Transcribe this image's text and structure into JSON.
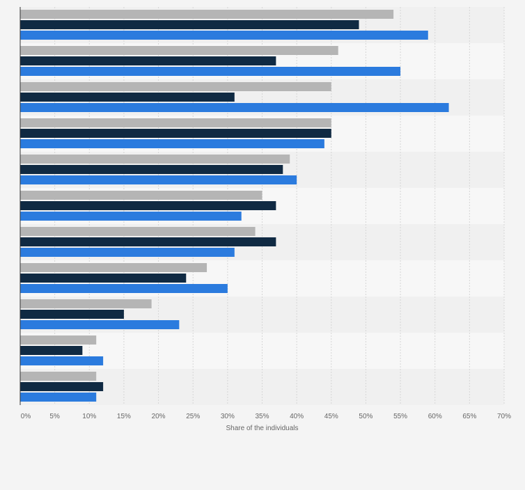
{
  "chart_data": {
    "type": "bar",
    "orientation": "horizontal",
    "xlabel": "Share of the individuals",
    "xlim": [
      0,
      70
    ],
    "x_ticks": [
      "0%",
      "5%",
      "10%",
      "15%",
      "20%",
      "25%",
      "30%",
      "35%",
      "40%",
      "45%",
      "50%",
      "55%",
      "60%",
      "65%",
      "70%"
    ],
    "category_count": 11,
    "grid": true,
    "legend": "none",
    "series": [
      {
        "color": "#b5b5b5",
        "values": [
          54,
          46,
          45,
          45,
          39,
          35,
          34,
          27,
          19,
          11,
          11
        ]
      },
      {
        "color": "#102a43",
        "values": [
          49,
          37,
          31,
          45,
          38,
          37,
          37,
          24,
          15,
          9,
          12
        ]
      },
      {
        "color": "#2b7bde",
        "values": [
          59,
          55,
          62,
          44,
          40,
          32,
          31,
          30,
          23,
          12,
          11
        ]
      }
    ]
  }
}
